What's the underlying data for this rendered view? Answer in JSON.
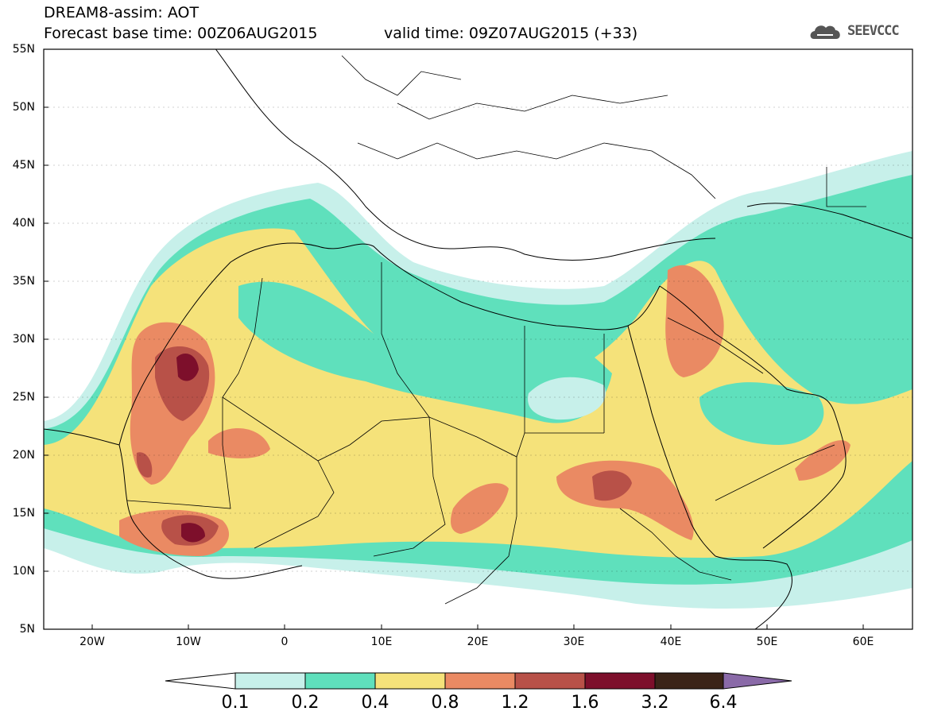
{
  "title": {
    "line1": "DREAM8-assim: AOT",
    "line2": "Forecast base time: 00Z06AUG2015",
    "valid": "valid time: 09Z07AUG2015 (+33)"
  },
  "logo": {
    "text": "SEEVCCC",
    "icon": "cloud-logo-icon"
  },
  "map": {
    "variable": "AOT",
    "lon_range": [
      -25,
      65
    ],
    "lat_range": [
      5,
      55
    ],
    "lat_labels": [
      "55N",
      "50N",
      "45N",
      "40N",
      "35N",
      "30N",
      "25N",
      "20N",
      "15N",
      "10N",
      "5N"
    ],
    "lon_labels": [
      "20W",
      "10W",
      "0",
      "10E",
      "20E",
      "30E",
      "40E",
      "50E",
      "60E"
    ]
  },
  "colorbar": {
    "levels": [
      "0.1",
      "0.2",
      "0.4",
      "0.8",
      "1.2",
      "1.6",
      "3.2",
      "6.4"
    ],
    "colors": [
      "#c7f0ea",
      "#5fe0bc",
      "#f5e27a",
      "#ea8a63",
      "#b85148",
      "#7d0f2b",
      "#3b2418",
      "#8a6aa8"
    ],
    "under_color": "#ffffff"
  }
}
